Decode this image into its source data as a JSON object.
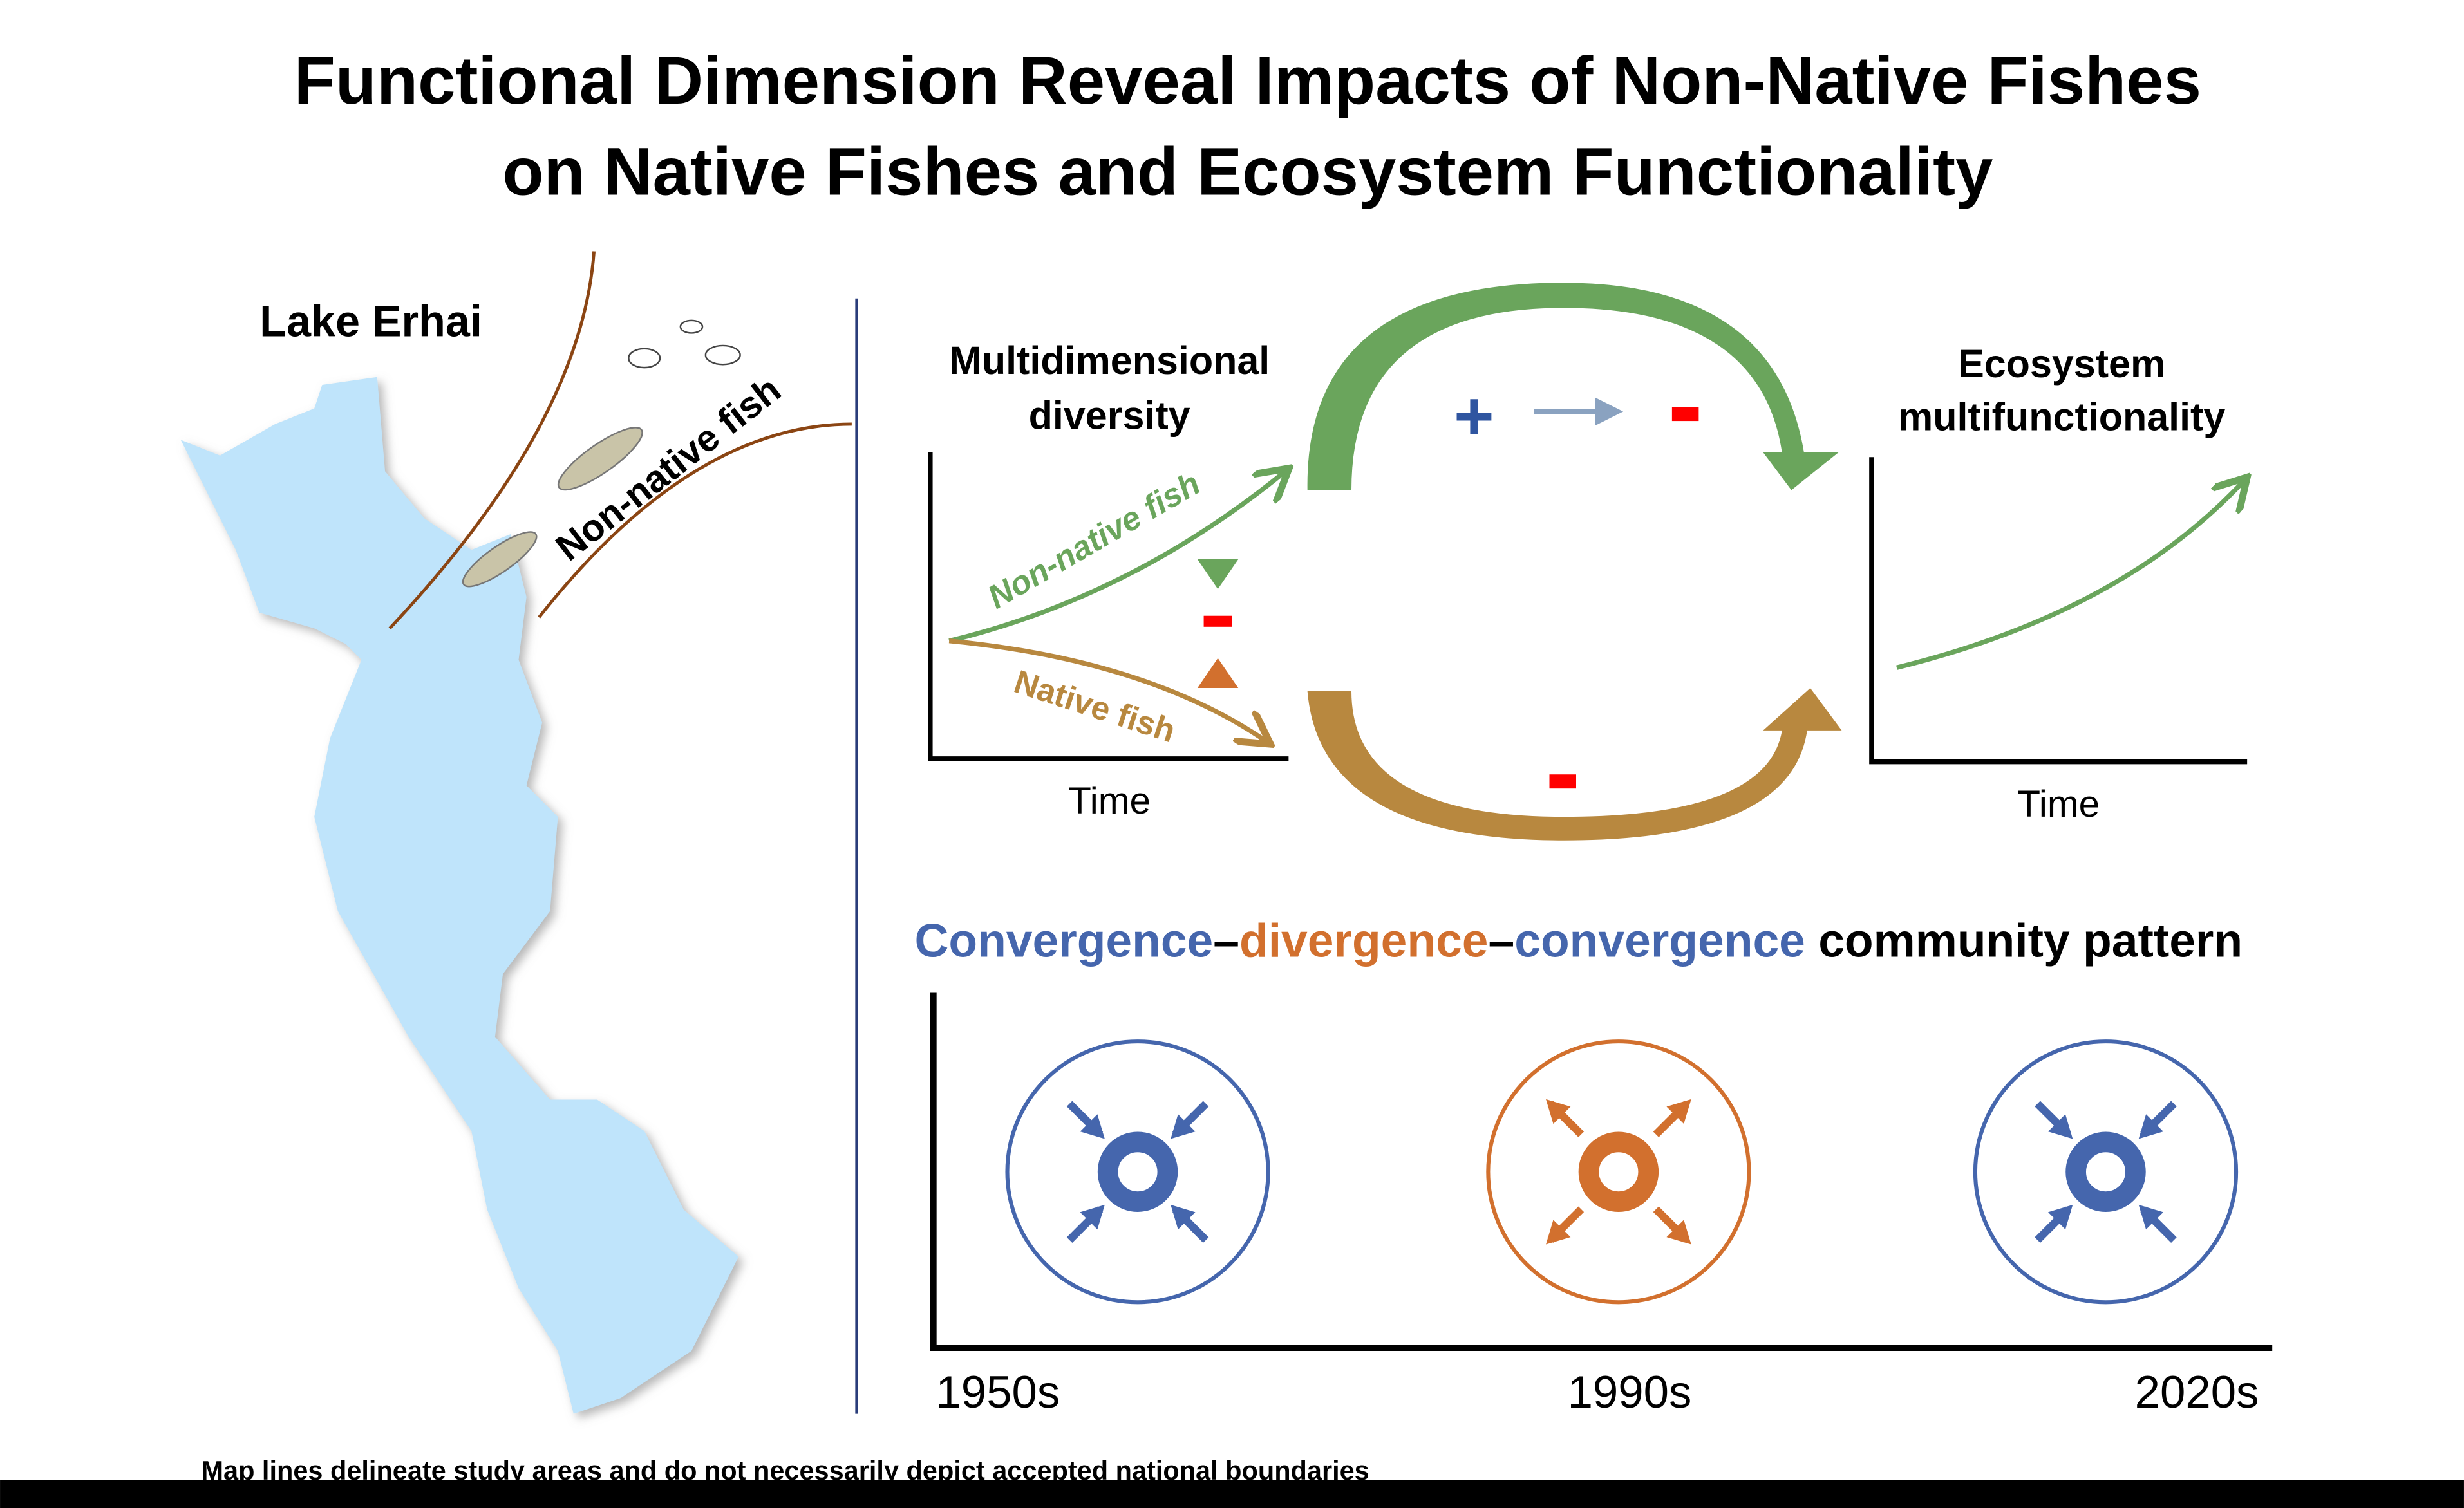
{
  "title": {
    "line1": "Functional Dimension Reveal Impacts of Non-Native Fishes",
    "line2": "on Native Fishes and Ecosystem Functionality"
  },
  "map": {
    "label": "Lake Erhai",
    "non_native_label": "Non-native fish",
    "disclaimer": "Map lines delineate study areas and do not necessarily depict accepted national boundaries"
  },
  "diversity_panel": {
    "title_line1": "Multidimensional",
    "title_line2": "diversity",
    "xlabel": "Time",
    "non_native_curve": "Non-native fish",
    "native_curve": "Native fish",
    "minus": "-"
  },
  "flow": {
    "plus": "+",
    "minus_top": "-",
    "minus_bottom": "-"
  },
  "ecosystem_panel": {
    "title_line1": "Ecosystem",
    "title_line2": "multifunctionality",
    "xlabel": "Time"
  },
  "pattern": {
    "heading_part1": "Convergence",
    "dash1": "–",
    "heading_part2": "divergence",
    "dash2": "–",
    "heading_part3": "convergence",
    "heading_part4": " community pattern",
    "periods": [
      "1950s",
      "1990s",
      "2020s"
    ],
    "states": [
      "convergence",
      "divergence",
      "convergence"
    ]
  },
  "colors": {
    "blue": "#4566ad",
    "orange": "#d2702e",
    "green": "#6aa55c",
    "brown": "#b8883f",
    "lake": "#bfe4fb",
    "red": "#ff0000"
  }
}
